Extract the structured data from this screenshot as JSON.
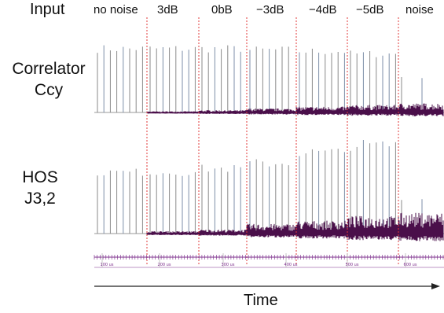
{
  "chart_data": {
    "type": "line",
    "segments": [
      "no noise",
      "3dB",
      "0bB",
      "−3dB",
      "−4dB",
      "−5dB",
      "noise"
    ],
    "rows": [
      {
        "label_lines": [
          "Correlator",
          "Ccy"
        ],
        "spike_heights_by_segment": [
          0.98,
          0.98,
          0.98,
          0.96,
          0.94,
          0.9,
          0.55
        ],
        "noise_level_by_segment": [
          0.0,
          0.02,
          0.04,
          0.07,
          0.1,
          0.13,
          0.16
        ]
      },
      {
        "label_lines": [
          "HOS",
          "J3,2"
        ],
        "spike_heights_by_segment": [
          0.68,
          0.68,
          0.72,
          0.78,
          0.9,
          0.98,
          0.38
        ],
        "noise_level_by_segment": [
          0.0,
          0.03,
          0.05,
          0.12,
          0.16,
          0.22,
          0.26
        ]
      }
    ],
    "time_ticks": [
      "100 us",
      "200 us",
      "300 us",
      "400 us",
      "500 us",
      "600 us"
    ],
    "input_label": "Input",
    "xlabel": "Time",
    "colors": {
      "noise": "#4a0f4a",
      "spike": "#8a8a8a",
      "divider": "#e23a3a",
      "axis": "#7a2a8a"
    }
  }
}
